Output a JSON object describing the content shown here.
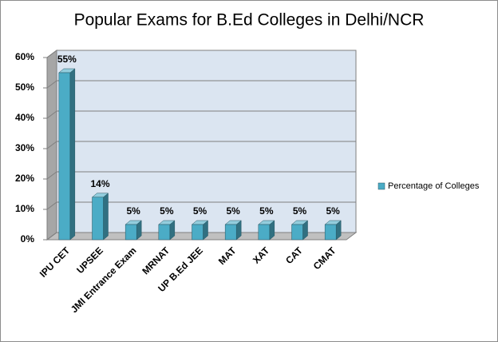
{
  "chart_data": {
    "type": "bar",
    "title": "Popular Exams for B.Ed Colleges in Delhi/NCR",
    "categories": [
      "IPU CET",
      "UPSEE",
      "JMI Entrance Exam",
      "MRNAT",
      "UP B.Ed JEE",
      "MAT",
      "XAT",
      "CAT",
      "CMAT"
    ],
    "series": [
      {
        "name": "Percentage of Colleges",
        "color": "#4bacc6",
        "values": [
          55,
          14,
          5,
          5,
          5,
          5,
          5,
          5,
          5
        ],
        "value_labels": [
          "55%",
          "14%",
          "5%",
          "5%",
          "5%",
          "5%",
          "5%",
          "5%",
          "5%"
        ]
      }
    ],
    "ylim": [
      0,
      60
    ],
    "yticks": [
      {
        "value": 0,
        "label": "0%"
      },
      {
        "value": 10,
        "label": "10%"
      },
      {
        "value": 20,
        "label": "20%"
      },
      {
        "value": 30,
        "label": "30%"
      },
      {
        "value": 40,
        "label": "40%"
      },
      {
        "value": 50,
        "label": "50%"
      },
      {
        "value": 60,
        "label": "60%"
      }
    ],
    "grid": true,
    "legend": "right"
  }
}
